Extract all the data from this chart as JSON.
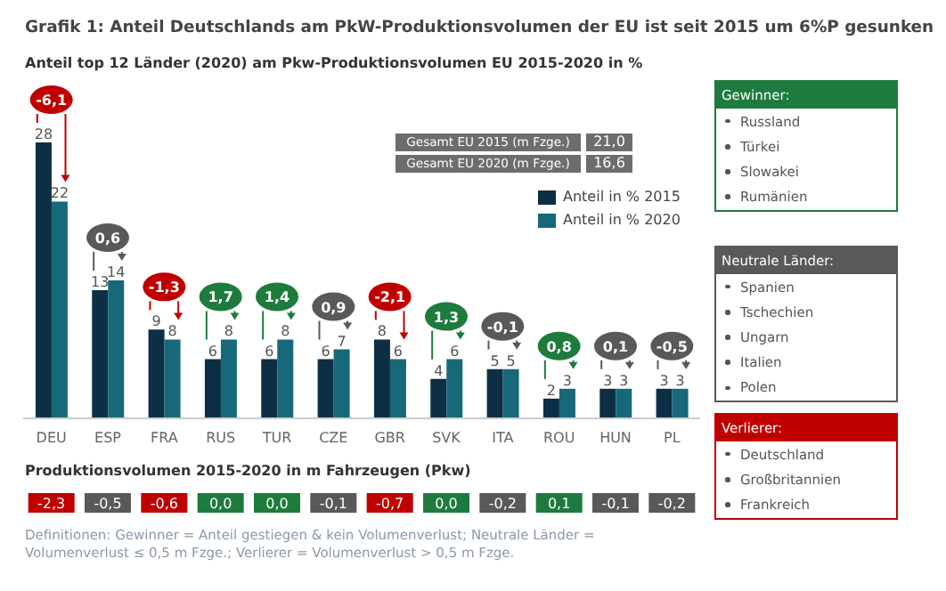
{
  "chart_data": {
    "type": "bar",
    "title": "Grafik 1: Anteil Deutschlands am PkW-Produktionsvolumen der EU ist seit 2015 um 6%P gesunken",
    "subtitle": "Anteil top 12 Länder (2020) am Pkw-Produktionsvolumen EU 2015-2020 in %",
    "categories": [
      "DEU",
      "ESP",
      "FRA",
      "RUS",
      "TUR",
      "CZE",
      "GBR",
      "SVK",
      "ITA",
      "ROU",
      "HUN",
      "PL"
    ],
    "series": [
      {
        "name": "Anteil in % 2015",
        "color": "#0d2f45",
        "values": [
          28,
          13,
          9,
          6,
          6,
          6,
          8,
          4,
          5,
          2,
          3,
          3
        ]
      },
      {
        "name": "Anteil in % 2020",
        "color": "#17697a",
        "values": [
          22,
          14,
          8,
          8,
          8,
          7,
          6,
          6,
          5,
          3,
          3,
          3
        ]
      }
    ],
    "data_labels": true,
    "legend": "top right",
    "tick_labels": "x",
    "annotations": [
      "-6,1",
      "0,6",
      "-1,3",
      "1,7",
      "1,4",
      "0,9",
      "-2,1",
      "1,3",
      "-0,1",
      "0,8",
      "0,1",
      "-0,5",
      "Produktionsvolumen 2015-2020 in m Fahrzeugen (Pkw)",
      "-2,3",
      "-0,5",
      "-0,6",
      "0,0",
      "0,0",
      "-0,1",
      "-0,7",
      "0,0",
      "-0,2",
      "0,1",
      "-0,1",
      "-0,2",
      "Gesamt EU 2015 (m Fzge.)",
      "21,0",
      "Gesamt EU 2020 (m Fzge.)",
      "16,6",
      "Gewinner:",
      "Russland",
      "Türkei",
      "Slowakei",
      "Rumänien",
      "Neutrale Länder:",
      "Spanien",
      "Tschechien",
      "Ungarn",
      "Italien",
      "Polen",
      "Verlierer:",
      "Deutschland",
      "Großbritannien",
      "Frankreich",
      "Definitionen: Gewinner = Anteil gestiegen & kein Volumenverlust; Neutrale Länder = Volumenverlust ≤ 0,5 m Fzge.; Verlierer = Volumenverlust > 0,5 m Fzge."
    ]
  }
}
